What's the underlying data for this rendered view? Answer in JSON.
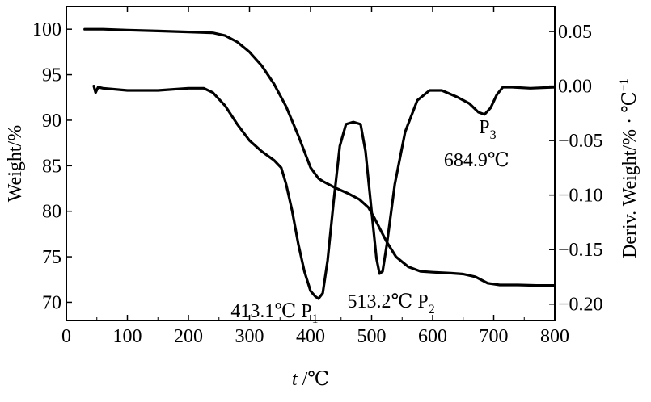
{
  "chart_data": {
    "type": "line",
    "x_axis": {
      "label_italic": "t",
      "label_rest": " /℃",
      "range": [
        0,
        800
      ],
      "ticks": [
        0,
        100,
        200,
        300,
        400,
        500,
        600,
        700,
        800
      ],
      "tick_labels": [
        "0",
        "100",
        "200",
        "300",
        "400",
        "500",
        "600",
        "700",
        "800"
      ]
    },
    "y_left": {
      "label": "Weight/%",
      "range": [
        68,
        102.5
      ],
      "ticks": [
        70,
        75,
        80,
        85,
        90,
        95,
        100
      ],
      "tick_labels": [
        "70",
        "75",
        "80",
        "85",
        "90",
        "95",
        "100"
      ]
    },
    "y_right": {
      "label": "Deriv. Weight/% · ℃",
      "label_sup": "−1",
      "range": [
        -0.215,
        0.073
      ],
      "ticks": [
        -0.2,
        -0.15,
        -0.1,
        -0.05,
        0.0,
        0.05
      ],
      "tick_labels": [
        "−0.20",
        "−0.15",
        "−0.10",
        "−0.05",
        "0.00",
        "0.05"
      ]
    },
    "series": [
      {
        "axis": "left",
        "points": [
          [
            30,
            100.0
          ],
          [
            60,
            100.0
          ],
          [
            100,
            99.9
          ],
          [
            150,
            99.8
          ],
          [
            200,
            99.7
          ],
          [
            240,
            99.6
          ],
          [
            260,
            99.3
          ],
          [
            280,
            98.6
          ],
          [
            300,
            97.5
          ],
          [
            320,
            96.0
          ],
          [
            340,
            94.0
          ],
          [
            360,
            91.5
          ],
          [
            380,
            88.3
          ],
          [
            400,
            84.8
          ],
          [
            413,
            83.6
          ],
          [
            420,
            83.3
          ],
          [
            440,
            82.6
          ],
          [
            460,
            82.0
          ],
          [
            480,
            81.3
          ],
          [
            495,
            80.4
          ],
          [
            505,
            79.2
          ],
          [
            515,
            77.9
          ],
          [
            525,
            76.6
          ],
          [
            540,
            75.0
          ],
          [
            560,
            73.9
          ],
          [
            580,
            73.4
          ],
          [
            600,
            73.3
          ],
          [
            630,
            73.2
          ],
          [
            650,
            73.1
          ],
          [
            670,
            72.8
          ],
          [
            690,
            72.1
          ],
          [
            710,
            71.9
          ],
          [
            740,
            71.9
          ],
          [
            770,
            71.85
          ],
          [
            800,
            71.85
          ]
        ]
      },
      {
        "axis": "right",
        "points": [
          [
            45,
            0.0
          ],
          [
            48,
            -0.006
          ],
          [
            52,
            -0.001
          ],
          [
            60,
            -0.002
          ],
          [
            100,
            -0.004
          ],
          [
            150,
            -0.004
          ],
          [
            200,
            -0.002
          ],
          [
            225,
            -0.002
          ],
          [
            240,
            -0.006
          ],
          [
            260,
            -0.018
          ],
          [
            280,
            -0.035
          ],
          [
            300,
            -0.05
          ],
          [
            320,
            -0.06
          ],
          [
            340,
            -0.068
          ],
          [
            352,
            -0.075
          ],
          [
            360,
            -0.09
          ],
          [
            370,
            -0.115
          ],
          [
            380,
            -0.145
          ],
          [
            390,
            -0.17
          ],
          [
            400,
            -0.188
          ],
          [
            408,
            -0.193
          ],
          [
            413,
            -0.195
          ],
          [
            420,
            -0.19
          ],
          [
            428,
            -0.16
          ],
          [
            438,
            -0.105
          ],
          [
            448,
            -0.055
          ],
          [
            458,
            -0.035
          ],
          [
            470,
            -0.033
          ],
          [
            482,
            -0.035
          ],
          [
            490,
            -0.06
          ],
          [
            500,
            -0.115
          ],
          [
            508,
            -0.158
          ],
          [
            513,
            -0.172
          ],
          [
            518,
            -0.17
          ],
          [
            525,
            -0.145
          ],
          [
            538,
            -0.09
          ],
          [
            555,
            -0.042
          ],
          [
            575,
            -0.013
          ],
          [
            595,
            -0.004
          ],
          [
            615,
            -0.004
          ],
          [
            640,
            -0.01
          ],
          [
            660,
            -0.016
          ],
          [
            675,
            -0.024
          ],
          [
            685,
            -0.026
          ],
          [
            695,
            -0.02
          ],
          [
            705,
            -0.008
          ],
          [
            715,
            -0.001
          ],
          [
            730,
            -0.001
          ],
          [
            760,
            -0.002
          ],
          [
            800,
            -0.001
          ]
        ]
      }
    ],
    "annotations": [
      {
        "text": "413.1℃ P",
        "sub": "1"
      },
      {
        "text": "513.2℃ P",
        "sub": "2"
      },
      {
        "text": "P",
        "sub": "3"
      },
      {
        "text": "684.9℃"
      }
    ]
  }
}
